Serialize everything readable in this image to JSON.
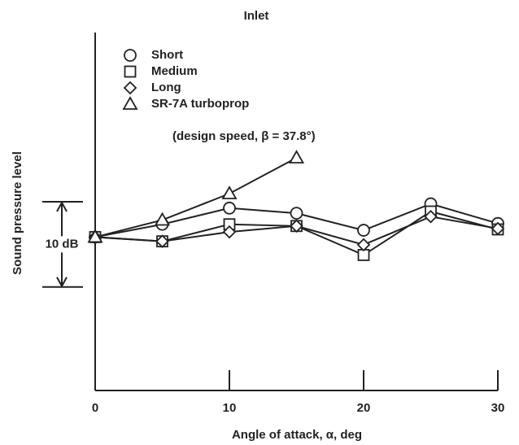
{
  "chart_data": {
    "type": "line",
    "title": "Inlet",
    "x_label": "Angle of attack, α, deg",
    "y_label": "Sound pressure level",
    "x": [
      0,
      5,
      10,
      15,
      20,
      25,
      30
    ],
    "series": [
      {
        "name": "Short",
        "marker": "circle",
        "color": "#222222",
        "values": [
          0,
          1.5,
          3.4,
          2.8,
          0.8,
          3.9,
          1.6
        ]
      },
      {
        "name": "Medium",
        "marker": "square",
        "color": "#222222",
        "values": [
          0,
          -0.5,
          1.5,
          1.3,
          -2.1,
          3.0,
          0.9
        ]
      },
      {
        "name": "Long",
        "marker": "diamond",
        "color": "#222222",
        "values": [
          0,
          -0.5,
          0.6,
          1.3,
          -0.9,
          2.4,
          1.0
        ]
      },
      {
        "name": "SR-7A turboprop",
        "marker": "triangle",
        "color": "#222222",
        "values": [
          0,
          2.0,
          5.1,
          9.3,
          null,
          null,
          null
        ]
      }
    ],
    "legend_note": "(design speed, β = 37.8°)",
    "scale_bar": {
      "label": "10 dB",
      "value": 10
    },
    "xlim": [
      0,
      30
    ],
    "xticks": [
      0,
      10,
      20,
      30
    ],
    "ylim": [
      -18,
      24
    ]
  }
}
